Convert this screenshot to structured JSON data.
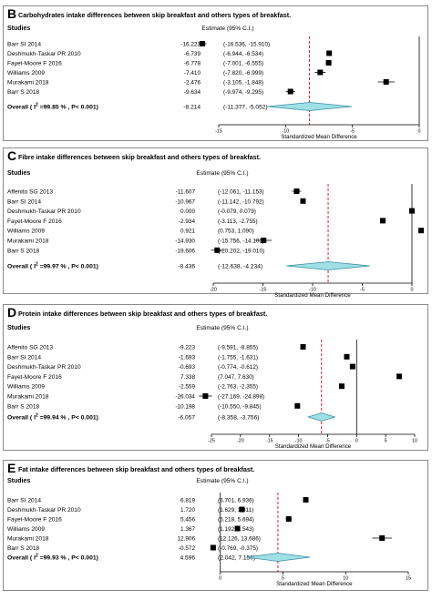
{
  "chart_data": [
    {
      "type": "forest",
      "letter": "B",
      "title": "Carbohydrates intake differences between skip breakfast and others types of breakfast.",
      "col_studies": "Studies",
      "col_estimate": "Estimate (95% C.I.)",
      "studies": [
        {
          "name": "Barr SI 2014",
          "est": -16.223,
          "lo": -16.536,
          "hi": -15.91,
          "est_txt": "-16.223",
          "ci_txt": "(-16.536, -15.910)"
        },
        {
          "name": "Deshmukh-Taskar PR 2010",
          "est": -6.739,
          "lo": -6.944,
          "hi": -6.534,
          "est_txt": "-6.739",
          "ci_txt": "(-6.944, -6.534)"
        },
        {
          "name": "Fayet-Moore F 2016",
          "est": -6.778,
          "lo": -7.001,
          "hi": -6.555,
          "est_txt": "-6.778",
          "ci_txt": "(-7.001, -6.555)"
        },
        {
          "name": "Williams 2009",
          "est": -7.41,
          "lo": -7.82,
          "hi": -6.999,
          "est_txt": "-7.410",
          "ci_txt": "(-7.820, -6.999)"
        },
        {
          "name": "Murakami 2018",
          "est": -2.476,
          "lo": -3.105,
          "hi": -1.848,
          "est_txt": "-2.476",
          "ci_txt": "(-3.105, -1.848)"
        },
        {
          "name": "Barr S 2018",
          "est": -9.634,
          "lo": -9.974,
          "hi": -9.295,
          "est_txt": "-9.634",
          "ci_txt": "(-9.974, -9.295)"
        }
      ],
      "overall": {
        "label_pre": "Overall  ( I",
        "label_sup": "2",
        "label_post": " =99.85 % , P< 0.001)",
        "est": -8.214,
        "lo": -11.377,
        "hi": -5.052,
        "est_txt": "-8.214",
        "ci_txt": "(-11.377, -5.052)"
      },
      "xticks": [
        -15,
        -10,
        -5,
        0
      ],
      "xlim": [
        -15,
        0
      ],
      "xlabel": "Standardized Mean Difference"
    },
    {
      "type": "forest",
      "letter": "C",
      "title": "Fibre intake differences between skip breakfast and others types of breakfast.",
      "col_studies": "Studies",
      "col_estimate": "Estimate (95% C.I.)",
      "studies": [
        {
          "name": "Affenito SG 2013",
          "est": -11.607,
          "lo": -12.061,
          "hi": -11.153,
          "est_txt": "-11.607",
          "ci_txt": "(-12.061, -11.153)"
        },
        {
          "name": "Barr SI 2014",
          "est": -10.967,
          "lo": -11.142,
          "hi": -10.792,
          "est_txt": "-10.967",
          "ci_txt": "(-11.142, -10.792)"
        },
        {
          "name": "Deshmukh-Taskar PR 2010",
          "est": 0.0,
          "lo": -0.079,
          "hi": 0.079,
          "est_txt": "0.000",
          "ci_txt": "(-0.079, 0.079)"
        },
        {
          "name": "Fayet-Moore F 2016",
          "est": -2.934,
          "lo": -3.113,
          "hi": -2.755,
          "est_txt": "-2.934",
          "ci_txt": "(-3.113, -2.755)"
        },
        {
          "name": "Williams 2009",
          "est": 0.921,
          "lo": 0.753,
          "hi": 1.09,
          "est_txt": "0.921",
          "ci_txt": "(0.753, 1.090)"
        },
        {
          "name": "Murakami 2018",
          "est": -14.93,
          "lo": -15.756,
          "hi": -14.103,
          "est_txt": "-14.930",
          "ci_txt": "(-15.756, -14.103)"
        },
        {
          "name": "Barr S 2018",
          "est": -19.606,
          "lo": -20.202,
          "hi": -19.01,
          "est_txt": "-19.606",
          "ci_txt": "(-20.202, -19.010)"
        }
      ],
      "overall": {
        "label_pre": "Overall  ( I",
        "label_sup": "2",
        "label_post": " =99.97 % , P< 0.001)",
        "est": -8.436,
        "lo": -12.638,
        "hi": -4.234,
        "est_txt": "-8.436",
        "ci_txt": "(-12.638, -4.234)"
      },
      "xticks": [
        -20,
        -15,
        -10,
        -5,
        0
      ],
      "xlim": [
        -20,
        0
      ],
      "xlabel": "Standardized Mean Difference"
    },
    {
      "type": "forest",
      "letter": "D",
      "title": "Protein intake differences between skip breakfast and others types of breakfast.",
      "col_studies": "Studies",
      "col_estimate": "Estimate (95% C.I.)",
      "studies": [
        {
          "name": "Affenito SG 2013",
          "est": -9.223,
          "lo": -9.591,
          "hi": -8.855,
          "est_txt": "-9.223",
          "ci_txt": "(-9.591, -8.855)"
        },
        {
          "name": "Barr SI 2014",
          "est": -1.693,
          "lo": -1.755,
          "hi": -1.631,
          "est_txt": "-1.693",
          "ci_txt": "(-1.755, -1.631)"
        },
        {
          "name": "Deshmukh-Taskar PR 2010",
          "est": -0.693,
          "lo": -0.774,
          "hi": -0.612,
          "est_txt": "-0.693",
          "ci_txt": "(-0.774, -0.612)"
        },
        {
          "name": "Fayet-Moore F 2016",
          "est": 7.338,
          "lo": 7.047,
          "hi": 7.63,
          "est_txt": "7.338",
          "ci_txt": "(7.047, 7.630)"
        },
        {
          "name": "Williams 2009",
          "est": -2.559,
          "lo": -2.763,
          "hi": -2.355,
          "est_txt": "-2.559",
          "ci_txt": "(-2.763, -2.355)"
        },
        {
          "name": "Murakami 2018",
          "est": -26.034,
          "lo": -27.169,
          "hi": -24.898,
          "est_txt": "-26.034",
          "ci_txt": "(-27.169, -24.898)"
        },
        {
          "name": "Barr S 2018",
          "est": -10.198,
          "lo": -10.55,
          "hi": -9.845,
          "est_txt": "-10.198",
          "ci_txt": "(-10.550, -9.845)"
        }
      ],
      "overall": {
        "label_pre": "Overall  ( I",
        "label_sup": "2",
        "label_post": " =99.94 % , P< 0.001)",
        "est": -6.057,
        "lo": -8.358,
        "hi": -3.756,
        "est_txt": "-6.057",
        "ci_txt": "(-8.358, -3.756)"
      },
      "xticks": [
        -25,
        -20,
        -15,
        -10,
        -5,
        0,
        5,
        10
      ],
      "xlim": [
        -25,
        10
      ],
      "xlabel": "Standardized Mean Difference"
    },
    {
      "type": "forest",
      "letter": "E",
      "title": "Fat intake differences between skip breakfast and others types of breakfast.",
      "col_studies": "Studies",
      "col_estimate": "Estimate (95% C.I.)",
      "studies": [
        {
          "name": "Barr SI 2014",
          "est": 6.819,
          "lo": 6.701,
          "hi": 6.936,
          "est_txt": "6.819",
          "ci_txt": "(6.701, 6.936)"
        },
        {
          "name": "Deshmukh-Taskar PR 2010",
          "est": 1.72,
          "lo": 1.629,
          "hi": 1.811,
          "est_txt": "1.720",
          "ci_txt": "(1.629, 1.811)"
        },
        {
          "name": "Fayet-Moore F 2016",
          "est": 5.456,
          "lo": 5.218,
          "hi": 5.694,
          "est_txt": "5.456",
          "ci_txt": "(5.218, 5.694)"
        },
        {
          "name": "Williams 2009",
          "est": 1.367,
          "lo": 1.192,
          "hi": 1.543,
          "est_txt": "1.367",
          "ci_txt": "(1.192, 1.543)"
        },
        {
          "name": "Murakami 2018",
          "est": 12.906,
          "lo": 12.126,
          "hi": 13.686,
          "est_txt": "12.906",
          "ci_txt": "(12.126, 13.686)"
        },
        {
          "name": "Barr S 2018",
          "est": -0.572,
          "lo": -0.769,
          "hi": -0.375,
          "est_txt": "-0.572",
          "ci_txt": "(-0.769, -0.375)"
        }
      ],
      "overall": {
        "label_pre": "Overall  ( I",
        "label_sup": "2",
        "label_post": " =99.93 % , P< 0.001)",
        "est": 4.596,
        "lo": 2.042,
        "hi": 7.15,
        "est_txt": "4.596",
        "ci_txt": "(2.042, 7.150)"
      },
      "xticks": [
        0,
        5,
        10,
        15
      ],
      "xlim": [
        -1,
        15
      ],
      "xlabel": "Standardized Mean Difference"
    }
  ],
  "colors": {
    "frame": "#8a8a8a",
    "marker": "#000000",
    "diamond_fill": "#9fe0e6",
    "diamond_stroke": "#3a8fa0",
    "dashed_line": "#e0202a",
    "text": "#000000"
  }
}
